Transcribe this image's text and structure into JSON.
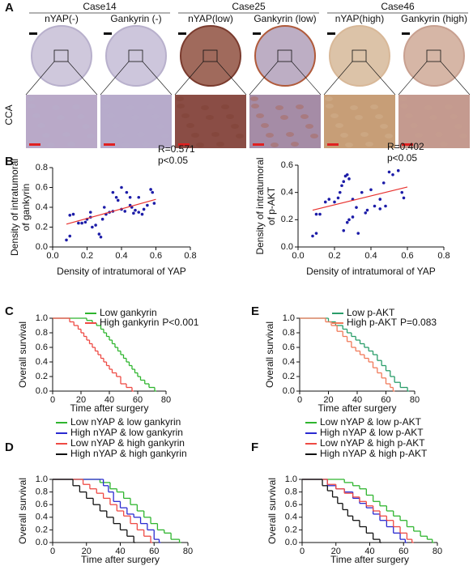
{
  "panel_a": {
    "label": "A",
    "row_label": "CCA",
    "cases": [
      {
        "name": "Case14",
        "columns": [
          "nYAP(-)",
          "Gankyrin (-)"
        ]
      },
      {
        "name": "Case25",
        "columns": [
          "nYAP(low)",
          "Gankyrin (low)"
        ]
      },
      {
        "name": "Case46",
        "columns": [
          "nYAP(high)",
          "Gankyrin (high)"
        ]
      }
    ]
  },
  "chart_data": [
    {
      "type": "scatter",
      "panel": "B",
      "xlabel": "Density of intratumoral of YAP",
      "ylabel": [
        "Density of intratumoral",
        "of gankyrin"
      ],
      "annotations": [
        "R=0.571",
        "p<0.05"
      ],
      "color": "#1c1ca8",
      "fit_color": "#e8322f",
      "x": [
        0.08,
        0.1,
        0.1,
        0.12,
        0.15,
        0.17,
        0.19,
        0.2,
        0.22,
        0.22,
        0.23,
        0.25,
        0.27,
        0.28,
        0.29,
        0.3,
        0.31,
        0.33,
        0.35,
        0.35,
        0.37,
        0.38,
        0.4,
        0.4,
        0.42,
        0.43,
        0.45,
        0.46,
        0.48,
        0.5,
        0.5,
        0.52,
        0.53,
        0.55,
        0.57,
        0.58,
        0.59,
        0.45,
        0.47
      ],
      "values": [
        0.07,
        0.11,
        0.32,
        0.33,
        0.24,
        0.24,
        0.25,
        0.28,
        0.35,
        0.3,
        0.2,
        0.22,
        0.13,
        0.1,
        0.28,
        0.4,
        0.33,
        0.35,
        0.36,
        0.55,
        0.5,
        0.47,
        0.6,
        0.38,
        0.36,
        0.55,
        0.42,
        0.4,
        0.37,
        0.35,
        0.5,
        0.33,
        0.38,
        0.42,
        0.58,
        0.55,
        0.44,
        0.5,
        0.34
      ],
      "fit": {
        "x": [
          0.08,
          0.6
        ],
        "y": [
          0.23,
          0.48
        ]
      },
      "xlim": [
        0,
        0.8
      ],
      "xticks": [
        {
          "value": 0,
          "label": "0.0"
        },
        0.2,
        0.4,
        0.6,
        0.8
      ],
      "ylim": [
        0,
        0.8
      ],
      "yticks": [
        {
          "value": 0,
          "label": "0.0"
        },
        0.2,
        0.4,
        0.6,
        0.8
      ]
    },
    {
      "type": "scatter",
      "xlabel": "Density of intratumoral of YAP",
      "ylabel": [
        "Density of intratumoral",
        "of p-AKT"
      ],
      "annotations": [
        "R=0.402",
        "p<0.05"
      ],
      "color": "#1c1ca8",
      "fit_color": "#e8322f",
      "x": [
        0.08,
        0.1,
        0.1,
        0.12,
        0.15,
        0.17,
        0.2,
        0.22,
        0.23,
        0.24,
        0.25,
        0.26,
        0.27,
        0.28,
        0.25,
        0.27,
        0.28,
        0.3,
        0.3,
        0.32,
        0.33,
        0.35,
        0.37,
        0.38,
        0.4,
        0.42,
        0.45,
        0.47,
        0.5,
        0.52,
        0.55,
        0.57,
        0.58,
        0.45,
        0.48
      ],
      "values": [
        0.08,
        0.1,
        0.24,
        0.24,
        0.33,
        0.35,
        0.33,
        0.36,
        0.4,
        0.45,
        0.48,
        0.52,
        0.53,
        0.5,
        0.12,
        0.18,
        0.2,
        0.22,
        0.35,
        0.29,
        0.1,
        0.4,
        0.25,
        0.27,
        0.42,
        0.3,
        0.35,
        0.47,
        0.55,
        0.53,
        0.56,
        0.4,
        0.36,
        0.28,
        0.3
      ],
      "fit": {
        "x": [
          0.08,
          0.6
        ],
        "y": [
          0.27,
          0.44
        ]
      },
      "xlim": [
        0,
        0.8
      ],
      "xticks": [
        {
          "value": 0,
          "label": "0.0"
        },
        0.2,
        0.4,
        0.6,
        0.8
      ],
      "ylim": [
        0,
        0.6
      ],
      "yticks": [
        {
          "value": 0,
          "label": "0.0"
        },
        0.2,
        0.4,
        0.6
      ]
    },
    {
      "type": "step",
      "panel": "C",
      "xlabel": "Time after surgery",
      "ylabel": "Overall survival",
      "legend": "upper right",
      "annotation": "P<0.001",
      "series": [
        {
          "name": "Low  gankyrin",
          "color": "#2fb52f",
          "x": [
            0,
            24,
            28,
            31,
            34,
            36,
            38,
            40,
            42,
            44,
            46,
            48,
            50,
            52,
            54,
            56,
            58,
            60,
            62,
            65,
            68,
            72
          ],
          "values": [
            1.0,
            0.97,
            0.93,
            0.9,
            0.85,
            0.8,
            0.75,
            0.7,
            0.65,
            0.6,
            0.55,
            0.5,
            0.45,
            0.4,
            0.35,
            0.3,
            0.25,
            0.2,
            0.15,
            0.1,
            0.05,
            0
          ]
        },
        {
          "name": "High gankyrin",
          "color": "#ee4a44",
          "x": [
            0,
            12,
            15,
            18,
            20,
            22,
            24,
            26,
            28,
            30,
            32,
            34,
            36,
            38,
            40,
            42,
            45,
            48,
            52,
            56
          ],
          "values": [
            1.0,
            0.95,
            0.9,
            0.85,
            0.8,
            0.75,
            0.7,
            0.65,
            0.6,
            0.55,
            0.5,
            0.45,
            0.4,
            0.35,
            0.3,
            0.25,
            0.2,
            0.1,
            0.05,
            0
          ]
        }
      ],
      "xlim": [
        0,
        80
      ],
      "xticks": [
        0,
        20,
        40,
        60,
        80
      ],
      "ylim": [
        0,
        1
      ],
      "yticks": [
        {
          "value": 0,
          "label": "0.0"
        },
        0.2,
        0.4,
        0.6,
        0.8,
        {
          "value": 1,
          "label": "1.0"
        }
      ]
    },
    {
      "type": "step",
      "panel": "E",
      "xlabel": "Time after surgery",
      "ylabel": "Overall survival",
      "legend": "upper right",
      "annotation": "P=0.083",
      "series": [
        {
          "name": "Low  p-AKT",
          "color": "#2a9d6a",
          "x": [
            0,
            20,
            25,
            30,
            33,
            36,
            39,
            42,
            45,
            48,
            51,
            54,
            57,
            60,
            63,
            66,
            70,
            75
          ],
          "values": [
            1,
            0.95,
            0.9,
            0.85,
            0.8,
            0.75,
            0.7,
            0.65,
            0.6,
            0.55,
            0.5,
            0.42,
            0.35,
            0.28,
            0.2,
            0.12,
            0.05,
            0
          ]
        },
        {
          "name": "High p-AKT",
          "color": "#f07a5a",
          "x": [
            0,
            18,
            22,
            26,
            30,
            33,
            36,
            39,
            42,
            45,
            48,
            51,
            54,
            57,
            60,
            63,
            65
          ],
          "values": [
            1,
            0.95,
            0.9,
            0.82,
            0.75,
            0.68,
            0.6,
            0.55,
            0.5,
            0.45,
            0.4,
            0.32,
            0.25,
            0.18,
            0.1,
            0.05,
            0
          ]
        }
      ],
      "xlim": [
        0,
        80
      ],
      "xticks": [
        0,
        20,
        40,
        60,
        80
      ],
      "ylim": [
        0,
        1
      ],
      "yticks": [
        {
          "value": 0,
          "label": "0.0"
        },
        0.2,
        0.4,
        0.6,
        0.8,
        {
          "value": 1,
          "label": "1.0"
        }
      ]
    },
    {
      "type": "step",
      "panel": "D",
      "xlabel": "Time after surgery",
      "ylabel": "Overall survival",
      "legend": "above",
      "series": [
        {
          "name": "Low  nYAP & low gankyrin",
          "color": "#2fb52f",
          "x": [
            0,
            28,
            34,
            38,
            42,
            46,
            50,
            54,
            58,
            62,
            66,
            70,
            75
          ],
          "values": [
            1,
            0.95,
            0.85,
            0.8,
            0.7,
            0.6,
            0.5,
            0.4,
            0.3,
            0.2,
            0.15,
            0.05,
            0
          ]
        },
        {
          "name": "High nYAP & low gankyrin",
          "color": "#2a2ad0",
          "x": [
            0,
            30,
            33,
            36,
            40,
            44,
            48,
            52,
            56,
            60,
            63
          ],
          "values": [
            1,
            0.9,
            0.8,
            0.65,
            0.55,
            0.45,
            0.4,
            0.3,
            0.2,
            0.05,
            0
          ]
        },
        {
          "name": "Low  nYAP & high gankyrin",
          "color": "#ee4a44",
          "x": [
            0,
            18,
            22,
            26,
            30,
            34,
            38,
            42,
            46,
            50,
            54,
            58
          ],
          "values": [
            1,
            0.92,
            0.85,
            0.78,
            0.7,
            0.6,
            0.5,
            0.42,
            0.3,
            0.2,
            0.1,
            0
          ]
        },
        {
          "name": "High nYAP & high gankyrin",
          "color": "#111111",
          "x": [
            0,
            12,
            16,
            20,
            24,
            28,
            32,
            36,
            40,
            44,
            48
          ],
          "values": [
            1,
            0.9,
            0.8,
            0.7,
            0.6,
            0.5,
            0.4,
            0.3,
            0.2,
            0.1,
            0
          ]
        }
      ],
      "xlim": [
        0,
        80
      ],
      "xticks": [
        0,
        20,
        40,
        60,
        80
      ],
      "ylim": [
        0,
        1
      ],
      "yticks": [
        {
          "value": 0,
          "label": "0.0"
        },
        0.2,
        0.4,
        0.6,
        0.8,
        {
          "value": 1,
          "label": "1.0"
        }
      ]
    },
    {
      "type": "step",
      "panel": "F",
      "xlabel": "Time after surgery",
      "ylabel": "Overall survival",
      "legend": "above",
      "series": [
        {
          "name": "Low  nYAP & low p-AKT",
          "color": "#2fb52f",
          "x": [
            0,
            25,
            30,
            34,
            38,
            42,
            46,
            50,
            54,
            58,
            62,
            66,
            70,
            74,
            77
          ],
          "values": [
            1,
            0.95,
            0.9,
            0.85,
            0.75,
            0.65,
            0.58,
            0.5,
            0.42,
            0.35,
            0.25,
            0.18,
            0.1,
            0.05,
            0
          ]
        },
        {
          "name": "High nYAP & low p-AKT",
          "color": "#2a2ad0",
          "x": [
            0,
            15,
            20,
            25,
            30,
            34,
            38,
            42,
            46,
            50,
            54,
            58,
            61
          ],
          "values": [
            1,
            0.9,
            0.85,
            0.8,
            0.7,
            0.62,
            0.55,
            0.45,
            0.35,
            0.25,
            0.15,
            0.05,
            0
          ]
        },
        {
          "name": "Low  nYAP & high p-AKT",
          "color": "#ee4a44",
          "x": [
            0,
            15,
            20,
            25,
            30,
            34,
            38,
            42,
            46,
            50,
            54,
            58,
            62,
            65
          ],
          "values": [
            1,
            0.92,
            0.85,
            0.78,
            0.72,
            0.65,
            0.58,
            0.5,
            0.42,
            0.35,
            0.25,
            0.15,
            0.05,
            0
          ]
        },
        {
          "name": "High nYAP & high p-AKT",
          "color": "#111111",
          "x": [
            0,
            12,
            15,
            18,
            21,
            24,
            27,
            30,
            34,
            38,
            42,
            46
          ],
          "values": [
            1,
            0.9,
            0.82,
            0.72,
            0.62,
            0.52,
            0.42,
            0.35,
            0.25,
            0.15,
            0.05,
            0
          ]
        }
      ],
      "xlim": [
        0,
        80
      ],
      "xticks": [
        0,
        20,
        40,
        60,
        80
      ],
      "ylim": [
        0,
        1
      ],
      "yticks": [
        {
          "value": 0,
          "label": "0.0"
        },
        0.2,
        0.4,
        0.6,
        0.8,
        {
          "value": 1,
          "label": "1.0"
        }
      ]
    }
  ]
}
